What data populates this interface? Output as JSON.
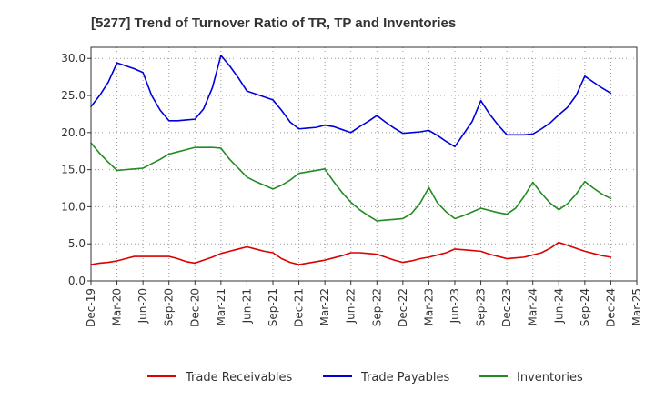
{
  "chart_data": {
    "type": "line",
    "title": "[5277]  Trend of Turnover Ratio of TR, TP and Inventories",
    "xlabel": "",
    "ylabel": "",
    "ylim": [
      0,
      31.5
    ],
    "yticks": [
      0,
      5,
      10,
      15,
      20,
      25,
      30
    ],
    "ytick_labels": [
      "0.0",
      "5.0",
      "10.0",
      "15.0",
      "20.0",
      "25.0",
      "30.0"
    ],
    "x_tick_labels": [
      "Dec-19",
      "Mar-20",
      "Jun-20",
      "Sep-20",
      "Dec-20",
      "Mar-21",
      "Jun-21",
      "Sep-21",
      "Dec-21",
      "Mar-22",
      "Jun-22",
      "Sep-22",
      "Dec-22",
      "Mar-23",
      "Jun-23",
      "Sep-23",
      "Dec-23",
      "Mar-24",
      "Jun-24",
      "Sep-24",
      "Dec-24",
      "Mar-25"
    ],
    "x": [
      "Dec-19",
      "Jan-20",
      "Feb-20",
      "Mar-20",
      "Apr-20",
      "May-20",
      "Jun-20",
      "Jul-20",
      "Aug-20",
      "Sep-20",
      "Oct-20",
      "Nov-20",
      "Dec-20",
      "Jan-21",
      "Feb-21",
      "Mar-21",
      "Apr-21",
      "May-21",
      "Jun-21",
      "Jul-21",
      "Aug-21",
      "Sep-21",
      "Oct-21",
      "Nov-21",
      "Dec-21",
      "Jan-22",
      "Feb-22",
      "Mar-22",
      "Apr-22",
      "May-22",
      "Jun-22",
      "Jul-22",
      "Aug-22",
      "Sep-22",
      "Oct-22",
      "Nov-22",
      "Dec-22",
      "Jan-23",
      "Feb-23",
      "Mar-23",
      "Apr-23",
      "May-23",
      "Jun-23",
      "Jul-23",
      "Aug-23",
      "Sep-23",
      "Oct-23",
      "Nov-23",
      "Dec-23",
      "Jan-24",
      "Feb-24",
      "Mar-24",
      "Apr-24",
      "May-24",
      "Jun-24",
      "Jul-24",
      "Aug-24",
      "Sep-24",
      "Oct-24",
      "Nov-24",
      "Dec-24"
    ],
    "grid": true,
    "legend_position": "bottom",
    "series": [
      {
        "name": "Trade Receivables",
        "color": "#dd0000",
        "values": [
          2.2,
          2.4,
          2.5,
          2.7,
          3.0,
          3.3,
          3.3,
          3.3,
          3.3,
          3.3,
          3.0,
          2.6,
          2.4,
          2.8,
          3.2,
          3.7,
          4.0,
          4.3,
          4.6,
          4.3,
          4.0,
          3.8,
          3.0,
          2.5,
          2.2,
          2.4,
          2.6,
          2.8,
          3.1,
          3.4,
          3.8,
          3.8,
          3.7,
          3.6,
          3.2,
          2.8,
          2.5,
          2.7,
          3.0,
          3.2,
          3.5,
          3.8,
          4.3,
          4.2,
          4.1,
          4.0,
          3.6,
          3.3,
          3.0,
          3.1,
          3.2,
          3.5,
          3.8,
          4.4,
          5.2,
          4.8,
          4.4,
          4.0,
          3.7,
          3.4,
          3.2
        ]
      },
      {
        "name": "Trade Payables",
        "color": "#0000dd",
        "values": [
          23.5,
          25.0,
          26.8,
          29.4,
          29.0,
          28.6,
          28.1,
          25.0,
          23.0,
          21.6,
          21.6,
          21.7,
          21.8,
          23.2,
          26.0,
          30.4,
          29.0,
          27.4,
          25.6,
          25.2,
          24.8,
          24.4,
          23.0,
          21.4,
          20.5,
          20.6,
          20.7,
          21.0,
          20.8,
          20.4,
          20.0,
          20.8,
          21.5,
          22.3,
          21.4,
          20.6,
          19.9,
          20.0,
          20.1,
          20.3,
          19.6,
          18.8,
          18.1,
          19.8,
          21.5,
          24.3,
          22.5,
          21.0,
          19.7,
          19.7,
          19.7,
          19.8,
          20.5,
          21.3,
          22.4,
          23.4,
          25.0,
          27.6,
          26.8,
          26.0,
          25.3
        ]
      },
      {
        "name": "Inventories",
        "color": "#228b22",
        "values": [
          18.6,
          17.2,
          16.0,
          14.9,
          15.0,
          15.1,
          15.2,
          15.8,
          16.4,
          17.1,
          17.4,
          17.7,
          18.0,
          18.0,
          18.0,
          17.9,
          16.4,
          15.2,
          14.0,
          13.4,
          12.9,
          12.4,
          12.9,
          13.6,
          14.5,
          14.7,
          14.9,
          15.1,
          13.4,
          11.9,
          10.6,
          9.6,
          8.8,
          8.1,
          8.2,
          8.3,
          8.4,
          9.1,
          10.5,
          12.6,
          10.5,
          9.3,
          8.4,
          8.8,
          9.3,
          9.8,
          9.5,
          9.2,
          9.0,
          9.8,
          11.4,
          13.3,
          11.8,
          10.5,
          9.6,
          10.4,
          11.7,
          13.4,
          12.5,
          11.7,
          11.1
        ]
      }
    ]
  }
}
